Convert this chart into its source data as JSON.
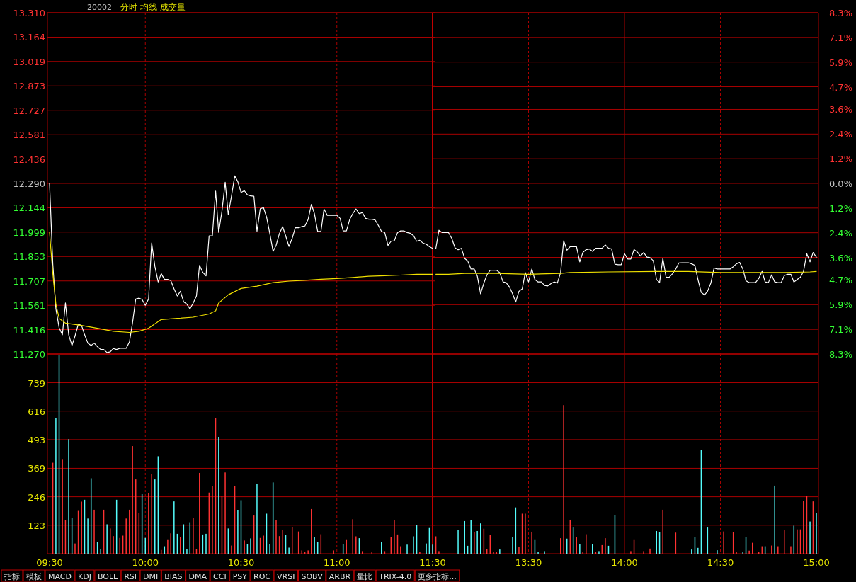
{
  "chart_data": [
    {
      "type": "line",
      "title": "分时 均线 成交量",
      "annotations": [
        "20002"
      ],
      "x": [
        9.5,
        9.517,
        9.533,
        9.55,
        9.567,
        9.583,
        9.6,
        9.617,
        9.633,
        9.65,
        9.667,
        9.683,
        9.7,
        9.717,
        9.733,
        9.75,
        9.767,
        9.783,
        9.8,
        9.817,
        9.833,
        9.85,
        9.867,
        9.883,
        9.9,
        9.917,
        9.933,
        9.95,
        9.967,
        9.983,
        10,
        10.017,
        10.033,
        10.05,
        10.067,
        10.083,
        10.1,
        10.117,
        10.133,
        10.15,
        10.167,
        10.183,
        10.2,
        10.217,
        10.233,
        10.25,
        10.267,
        10.283,
        10.3,
        10.317,
        10.333,
        10.35,
        10.367,
        10.383,
        10.4,
        10.417,
        10.433,
        10.45,
        10.467,
        10.483,
        10.5,
        10.517,
        10.533,
        10.55,
        10.567,
        10.583,
        10.6,
        10.617,
        10.633,
        10.65,
        10.667,
        10.683,
        10.7,
        10.717,
        10.733,
        10.75,
        10.767,
        10.783,
        10.8,
        10.817,
        10.833,
        10.85,
        10.867,
        10.883,
        10.9,
        10.917,
        10.933,
        10.95,
        10.967,
        10.983,
        11,
        11.017,
        11.033,
        11.05,
        11.067,
        11.083,
        11.1,
        11.117,
        11.133,
        11.15,
        11.167,
        11.183,
        11.2,
        11.217,
        11.233,
        11.25,
        11.267,
        11.283,
        11.3,
        11.317,
        11.333,
        11.35,
        11.367,
        11.383,
        11.4,
        11.417,
        11.433,
        11.45,
        11.467,
        11.483,
        11.5
      ],
      "series": [
        {
          "color": "#ffffff",
          "values": [
            12.29,
            11.807,
            11.54,
            11.427,
            11.385,
            11.575,
            11.385,
            11.321,
            11.378,
            11.448,
            11.441,
            11.385,
            11.335,
            11.321,
            11.335,
            11.314,
            11.297,
            11.297,
            11.279,
            11.283,
            11.303,
            11.297,
            11.304,
            11.304,
            11.304,
            11.342,
            11.455,
            11.599,
            11.604,
            11.596,
            11.561,
            11.599,
            11.934,
            11.793,
            11.701,
            11.751,
            11.716,
            11.716,
            11.709,
            11.659,
            11.617,
            11.645,
            11.582,
            11.568,
            11.54,
            11.575,
            11.617,
            11.8,
            11.758,
            11.737,
            11.976,
            11.976,
            12.244,
            11.997,
            12.124,
            12.297,
            12.103,
            12.215,
            12.335,
            12.3,
            12.236,
            12.246,
            12.222,
            12.215,
            12.213,
            12.004,
            12.138,
            12.145,
            12.089,
            11.99,
            11.884,
            11.92,
            11.99,
            12.032,
            11.976,
            11.913,
            11.962,
            12.025,
            12.025,
            12.032,
            12.035,
            12.074,
            12.165,
            12.109,
            12.003,
            12.003,
            12.137,
            12.099,
            12.099,
            12.099,
            12.099,
            12.081,
            12.006,
            12.006,
            12.074,
            12.109,
            12.137,
            12.109,
            12.116,
            12.081,
            12.076,
            12.076,
            12.071,
            12.038,
            12.003,
            11.996,
            11.919,
            11.944,
            11.947,
            11.996,
            12.006,
            12.006,
            11.996,
            11.992,
            11.978,
            11.944,
            11.95,
            11.933,
            11.926,
            11.912,
            11.902
          ]
        },
        {
          "color": "#f0e000",
          "x": [
            9.5,
            9.517,
            9.533,
            9.55,
            9.583,
            9.667,
            9.75,
            9.833,
            9.917,
            9.967,
            10.017,
            10.083,
            10.167,
            10.25,
            10.333,
            10.367,
            10.383,
            10.433,
            10.5,
            10.583,
            10.667,
            10.75,
            10.833,
            10.917,
            11,
            11.083,
            11.167,
            11.25,
            11.333,
            11.417,
            11.5
          ],
          "values": [
            11.997,
            11.751,
            11.568,
            11.483,
            11.455,
            11.441,
            11.424,
            11.406,
            11.399,
            11.406,
            11.424,
            11.476,
            11.483,
            11.49,
            11.509,
            11.528,
            11.575,
            11.624,
            11.662,
            11.676,
            11.697,
            11.706,
            11.711,
            11.717,
            11.721,
            11.728,
            11.735,
            11.738,
            11.742,
            11.747,
            11.747
          ]
        }
      ],
      "xlim": [
        9.5,
        11.5
      ],
      "xticks": [
        {
          "value": 9.5,
          "label": null
        },
        {
          "value": 10,
          "label": null
        },
        {
          "value": 10.5,
          "label": null
        },
        {
          "value": 11,
          "label": null
        },
        {
          "value": 11.5,
          "label": null
        }
      ],
      "ylim": [
        11.27,
        13.31
      ],
      "yticks": [
        {
          "value": 11.27,
          "label": "11.270"
        },
        11.416,
        11.561,
        11.707,
        11.853,
        11.999,
        12.144,
        {
          "value": 12.29,
          "label": "12.290"
        },
        12.436,
        12.581,
        12.727,
        12.873,
        13.019,
        13.164,
        {
          "value": 13.31,
          "label": "13.310"
        }
      ],
      "grid": true,
      "tick_labels": "y"
    },
    {
      "type": "line",
      "x": [
        13.017,
        13.033,
        13.05,
        13.067,
        13.083,
        13.1,
        13.117,
        13.133,
        13.15,
        13.167,
        13.183,
        13.2,
        13.217,
        13.233,
        13.25,
        13.267,
        13.283,
        13.3,
        13.317,
        13.333,
        13.35,
        13.367,
        13.383,
        13.4,
        13.417,
        13.433,
        13.45,
        13.467,
        13.483,
        13.5,
        13.517,
        13.533,
        13.55,
        13.567,
        13.583,
        13.6,
        13.617,
        13.633,
        13.65,
        13.667,
        13.683,
        13.7,
        13.717,
        13.733,
        13.75,
        13.767,
        13.783,
        13.8,
        13.817,
        13.833,
        13.85,
        13.867,
        13.883,
        13.9,
        13.917,
        13.933,
        13.95,
        13.967,
        13.983,
        14,
        14.017,
        14.033,
        14.05,
        14.067,
        14.083,
        14.1,
        14.117,
        14.133,
        14.15,
        14.167,
        14.183,
        14.2,
        14.217,
        14.233,
        14.25,
        14.267,
        14.283,
        14.3,
        14.317,
        14.333,
        14.35,
        14.367,
        14.383,
        14.4,
        14.417,
        14.433,
        14.45,
        14.467,
        14.483,
        14.5,
        14.517,
        14.533,
        14.55,
        14.567,
        14.583,
        14.6,
        14.617,
        14.633,
        14.65,
        14.667,
        14.683,
        14.7,
        14.717,
        14.733,
        14.75,
        14.767,
        14.783,
        14.8,
        14.817,
        14.833,
        14.85,
        14.867,
        14.883,
        14.9,
        14.917,
        14.933,
        14.95,
        14.967,
        14.983,
        15
      ],
      "series": [
        {
          "color": "#ffffff",
          "values": [
            11.902,
            12.01,
            11.996,
            11.996,
            11.996,
            11.961,
            11.905,
            11.893,
            11.902,
            11.841,
            11.827,
            11.778,
            11.778,
            11.736,
            11.63,
            11.694,
            11.743,
            11.771,
            11.771,
            11.771,
            11.757,
            11.701,
            11.697,
            11.672,
            11.63,
            11.581,
            11.645,
            11.659,
            11.757,
            11.701,
            11.778,
            11.715,
            11.701,
            11.701,
            11.68,
            11.677,
            11.691,
            11.701,
            11.694,
            11.757,
            11.947,
            11.891,
            11.912,
            11.912,
            11.912,
            11.821,
            11.877,
            11.894,
            11.898,
            11.884,
            11.902,
            11.902,
            11.902,
            11.922,
            11.902,
            11.898,
            11.807,
            11.804,
            11.804,
            11.87,
            11.838,
            11.838,
            11.894,
            11.88,
            11.856,
            11.877,
            11.849,
            11.846,
            11.828,
            11.715,
            11.698,
            11.842,
            11.729,
            11.729,
            11.75,
            11.778,
            11.814,
            11.816,
            11.816,
            11.816,
            11.809,
            11.8,
            11.715,
            11.638,
            11.623,
            11.645,
            11.694,
            11.785,
            11.778,
            11.778,
            11.778,
            11.778,
            11.778,
            11.792,
            11.809,
            11.818,
            11.778,
            11.708,
            11.697,
            11.697,
            11.697,
            11.722,
            11.764,
            11.701,
            11.697,
            11.743,
            11.701,
            11.697,
            11.697,
            11.739,
            11.747,
            11.747,
            11.701,
            11.715,
            11.729,
            11.764,
            11.87,
            11.821,
            11.877,
            11.849
          ]
        },
        {
          "color": "#f0e000",
          "x": [
            13.017,
            13.083,
            13.167,
            13.333,
            13.5,
            13.667,
            13.717,
            13.917,
            14.167,
            14.333,
            14.5,
            14.667,
            14.833,
            14.967,
            15
          ],
          "values": [
            11.747,
            11.747,
            11.752,
            11.752,
            11.747,
            11.752,
            11.757,
            11.761,
            11.764,
            11.764,
            11.757,
            11.757,
            11.757,
            11.761,
            11.764
          ]
        }
      ],
      "xlim": [
        13,
        15
      ],
      "xticks": [
        {
          "value": 13.5,
          "label": null
        },
        {
          "value": 14,
          "label": null
        },
        {
          "value": 14.5,
          "label": null
        },
        {
          "value": 15,
          "label": null
        }
      ],
      "ylim": [
        11.27,
        13.31
      ],
      "y2lim": [
        -8.3,
        8.3
      ],
      "y2ticks": [
        {
          "value": -8.3,
          "label": "8.3%"
        },
        {
          "value": -7.1,
          "label": "7.1%"
        },
        {
          "value": -5.9,
          "label": "5.9%"
        },
        {
          "value": -4.7,
          "label": "4.7%"
        },
        {
          "value": -3.6,
          "label": "3.6%"
        },
        {
          "value": -2.4,
          "label": "2.4%"
        },
        {
          "value": -1.2,
          "label": "1.2%"
        },
        {
          "value": 0,
          "label": "0.0%"
        },
        {
          "value": 1.2,
          "label": "1.2%"
        },
        {
          "value": 2.4,
          "label": "2.4%"
        },
        {
          "value": 3.6,
          "label": "3.6%"
        },
        {
          "value": 4.7,
          "label": "4.7%"
        },
        {
          "value": 5.9,
          "label": "5.9%"
        },
        {
          "value": 7.1,
          "label": "7.1%"
        },
        {
          "value": 8.3,
          "label": "8.3%"
        }
      ],
      "grid": true,
      "tick_labels": "y"
    },
    {
      "type": "bar",
      "annotations": [
        "指标",
        "模板",
        "MACD",
        "KDJ",
        "BOLL",
        "RSI",
        "DMI",
        "BIAS",
        "DMA",
        "CCI",
        "PSY",
        "ROC",
        "VRSI",
        "SOBV",
        "ARBR",
        "量比",
        "TRIX-4.0",
        "更多指标..."
      ],
      "xlim": [
        9.5,
        11.5
      ],
      "xticks": [
        {
          "value": 9.5,
          "label": "09:30"
        },
        {
          "value": 10,
          "label": "10:00"
        },
        {
          "value": 10.5,
          "label": "10:30"
        },
        {
          "value": 11,
          "label": "11:00"
        },
        {
          "value": 11.5,
          "label": "11:30"
        }
      ],
      "ylim": [
        0,
        863
      ],
      "yticks": [
        123,
        246,
        369,
        493,
        616,
        739
      ],
      "grid": true,
      "series": [
        {
          "x": [
            9.517,
            9.533,
            9.55,
            9.567,
            9.583,
            9.6,
            9.617,
            9.633,
            9.65,
            9.667,
            9.683,
            9.7,
            9.717,
            9.733,
            9.75,
            9.767,
            9.783,
            9.8,
            9.817,
            9.833,
            9.85,
            9.867,
            9.883,
            9.9,
            9.917,
            9.933,
            9.95,
            9.967,
            9.983,
            10,
            10.017,
            10.033,
            10.05,
            10.067,
            10.083,
            10.1,
            10.117,
            10.133,
            10.15,
            10.167,
            10.183,
            10.2,
            10.217,
            10.233,
            10.25,
            10.267,
            10.283,
            10.3,
            10.317,
            10.333,
            10.35,
            10.367,
            10.383,
            10.4,
            10.417,
            10.433,
            10.45,
            10.467,
            10.483,
            10.5,
            10.517,
            10.533,
            10.55,
            10.567,
            10.583,
            10.6,
            10.617,
            10.633,
            10.65,
            10.667,
            10.683,
            10.7,
            10.717,
            10.733,
            10.75,
            10.767,
            10.8,
            10.817,
            10.833,
            10.85,
            10.867,
            10.883,
            10.9,
            10.917,
            10.983,
            11.033,
            11.05,
            11.083,
            11.1,
            11.117,
            11.133,
            11.183,
            11.233,
            11.25,
            11.283,
            11.3,
            11.317,
            11.333,
            11.367,
            11.4,
            11.417,
            11.433,
            11.467,
            11.483,
            11.5
          ],
          "values": [
            393,
            587,
            859,
            409,
            144,
            495,
            154,
            44,
            185,
            225,
            233,
            152,
            326,
            190,
            50,
            19,
            190,
            127,
            109,
            76,
            233,
            68,
            78,
            152,
            190,
            465,
            321,
            175,
            257,
            68,
            262,
            344,
            321,
            421,
            16,
            32,
            62,
            88,
            226,
            86,
            73,
            127,
            19,
            136,
            155,
            19,
            349,
            83,
            86,
            264,
            293,
            585,
            505,
            250,
            351,
            109,
            35,
            293,
            188,
            231,
            57,
            42,
            66,
            165,
            303,
            68,
            78,
            173,
            42,
            308,
            144,
            76,
            103,
            81,
            26,
            116,
            96,
            14,
            6,
            14,
            193,
            73,
            52,
            84,
            14,
            42,
            62,
            149,
            75,
            67,
            11,
            8,
            52,
            11,
            71,
            146,
            83,
            32,
            39,
            75,
            124,
            9,
            44,
            111,
            39
          ],
          "colors": [
            "#ff3232",
            "#54fcfc",
            "#54fcfc",
            "#ff3232",
            "#ff3232",
            "#54fcfc",
            "#54fcfc",
            "#ff3232",
            "#ff3232",
            "#ff3232",
            "#54fcfc",
            "#54fcfc",
            "#54fcfc",
            "#ff3232",
            "#54fcfc",
            "#54fcfc",
            "#ff3232",
            "#54fcfc",
            "#ff3232",
            "#ff3232",
            "#54fcfc",
            "#ff3232",
            "#ff3232",
            "#ff3232",
            "#ff3232",
            "#ff3232",
            "#ff3232",
            "#ff3232",
            "#54fcfc",
            "#54fcfc",
            "#ff3232",
            "#ff3232",
            "#54fcfc",
            "#54fcfc",
            "#ff3232",
            "#54fcfc",
            "#ff3232",
            "#ff3232",
            "#54fcfc",
            "#54fcfc",
            "#ff3232",
            "#54fcfc",
            "#54fcfc",
            "#54fcfc",
            "#ff3232",
            "#ff3232",
            "#ff3232",
            "#54fcfc",
            "#54fcfc",
            "#ff3232",
            "#ff3232",
            "#ff3232",
            "#54fcfc",
            "#ff3232",
            "#ff3232",
            "#54fcfc",
            "#ff3232",
            "#ff3232",
            "#54fcfc",
            "#54fcfc",
            "#ff3232",
            "#54fcfc",
            "#54fcfc",
            "#ff3232",
            "#54fcfc",
            "#ff3232",
            "#ff3232",
            "#54fcfc",
            "#54fcfc",
            "#54fcfc",
            "#ff3232",
            "#ff3232",
            "#ff3232",
            "#54fcfc",
            "#54fcfc",
            "#ff3232",
            "#ff3232",
            "#ff3232",
            "#ff3232",
            "#ff3232",
            "#ff3232",
            "#54fcfc",
            "#54fcfc",
            "#ff3232",
            "#ff3232",
            "#54fcfc",
            "#ff3232",
            "#ff3232",
            "#ff3232",
            "#54fcfc",
            "#ff3232",
            "#ff3232",
            "#54fcfc",
            "#ff3232",
            "#ff3232",
            "#ff3232",
            "#ff3232",
            "#ff3232",
            "#54fcfc",
            "#54fcfc",
            "#54fcfc",
            "#ff3232",
            "#54fcfc",
            "#54fcfc",
            "#54fcfc"
          ]
        }
      ]
    },
    {
      "type": "bar",
      "xlim": [
        13,
        15
      ],
      "xticks": [
        {
          "value": 13.5,
          "label": "13:30"
        },
        {
          "value": 14,
          "label": "14:00"
        },
        {
          "value": 14.5,
          "label": "14:30"
        },
        {
          "value": 15,
          "label": "15:00"
        }
      ],
      "ylim": [
        0,
        863
      ],
      "yticks": [
        123,
        246,
        369,
        493,
        616,
        739
      ],
      "grid": true,
      "tick_labels": "x",
      "series": [
        {
          "x": [
            13.017,
            13.033,
            13.133,
            13.167,
            13.183,
            13.2,
            13.217,
            13.233,
            13.25,
            13.267,
            13.283,
            13.3,
            13.317,
            13.333,
            13.35,
            13.417,
            13.433,
            13.45,
            13.467,
            13.483,
            13.517,
            13.533,
            13.55,
            13.583,
            13.667,
            13.683,
            13.7,
            13.717,
            13.733,
            13.75,
            13.767,
            13.783,
            13.8,
            13.833,
            13.85,
            13.867,
            13.883,
            13.9,
            13.917,
            13.95,
            14.033,
            14.05,
            14.1,
            14.133,
            14.167,
            14.183,
            14.2,
            14.267,
            14.35,
            14.367,
            14.383,
            14.4,
            14.433,
            14.483,
            14.517,
            14.567,
            14.583,
            14.617,
            14.633,
            14.65,
            14.667,
            14.7,
            14.717,
            14.733,
            14.767,
            14.783,
            14.8,
            14.833,
            14.867,
            14.883,
            14.9,
            14.917,
            14.933,
            14.95,
            14.967,
            14.983,
            15
          ],
          "values": [
            75,
            11,
            104,
            141,
            34,
            144,
            92,
            98,
            131,
            108,
            21,
            80,
            9,
            6,
            18,
            71,
            200,
            29,
            173,
            173,
            95,
            62,
            9,
            11,
            67,
            642,
            65,
            147,
            113,
            72,
            40,
            9,
            84,
            40,
            6,
            11,
            37,
            67,
            34,
            166,
            11,
            62,
            11,
            22,
            98,
            92,
            190,
            91,
            18,
            71,
            25,
            448,
            113,
            15,
            96,
            92,
            9,
            9,
            71,
            13,
            47,
            6,
            32,
            32,
            35,
            294,
            32,
            103,
            32,
            121,
            105,
            105,
            229,
            249,
            139,
            226,
            176
          ],
          "colors": [
            "#ff3232",
            "#ff3232",
            "#54fcfc",
            "#54fcfc",
            "#54fcfc",
            "#54fcfc",
            "#ff3232",
            "#54fcfc",
            "#54fcfc",
            "#ff3232",
            "#ff3232",
            "#ff3232",
            "#ff3232",
            "#ff3232",
            "#54fcfc",
            "#54fcfc",
            "#54fcfc",
            "#ff3232",
            "#ff3232",
            "#ff3232",
            "#ff3232",
            "#54fcfc",
            "#54fcfc",
            "#54fcfc",
            "#ff3232",
            "#ff3232",
            "#54fcfc",
            "#ff3232",
            "#54fcfc",
            "#ff3232",
            "#54fcfc",
            "#ff3232",
            "#ff3232",
            "#54fcfc",
            "#ff3232",
            "#54fcfc",
            "#ff3232",
            "#ff3232",
            "#54fcfc",
            "#54fcfc",
            "#ff3232",
            "#ff3232",
            "#ff3232",
            "#ff3232",
            "#54fcfc",
            "#54fcfc",
            "#ff3232",
            "#ff3232",
            "#54fcfc",
            "#54fcfc",
            "#54fcfc",
            "#54fcfc",
            "#54fcfc",
            "#54fcfc",
            "#ff3232",
            "#ff3232",
            "#ff3232",
            "#54fcfc",
            "#54fcfc",
            "#ff3232",
            "#ff3232",
            "#ff3232",
            "#ff3232",
            "#54fcfc",
            "#ff3232",
            "#54fcfc",
            "#ff3232",
            "#ff3232",
            "#ff3232",
            "#54fcfc",
            "#ff3232",
            "#ff3232",
            "#ff3232",
            "#ff3232",
            "#54fcfc",
            "#ff3232",
            "#54fcfc"
          ]
        }
      ]
    }
  ]
}
